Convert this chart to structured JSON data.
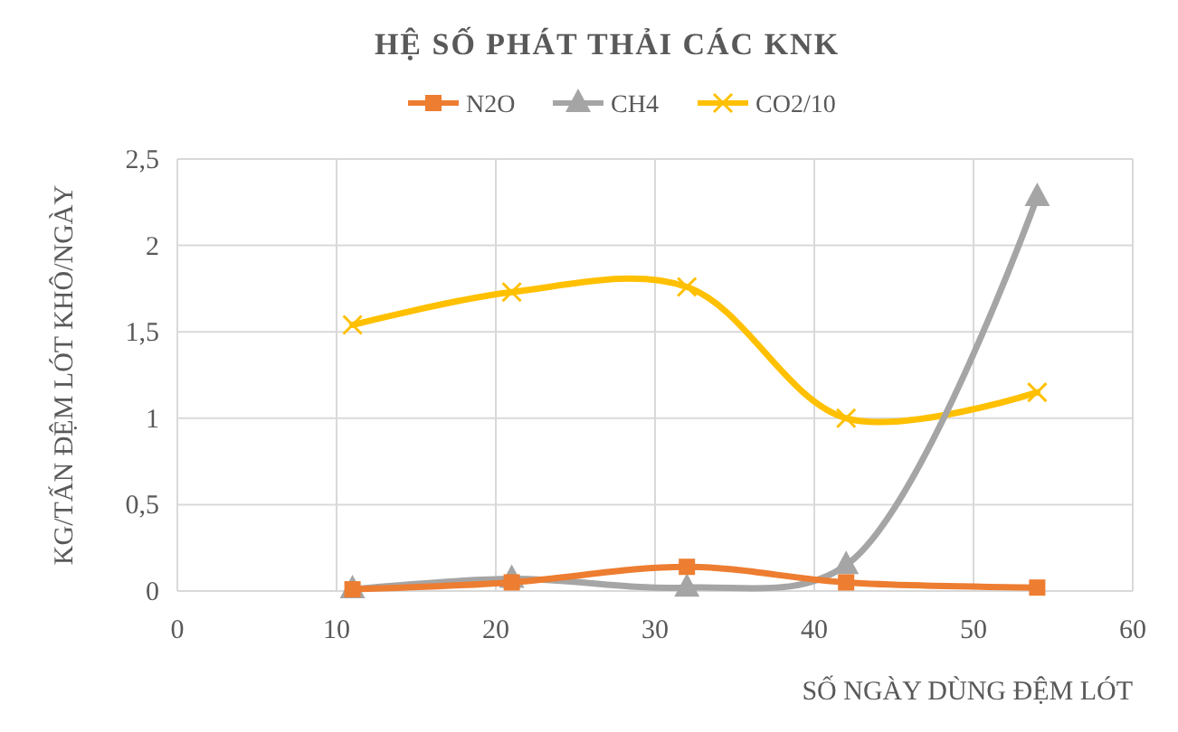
{
  "chart_data": {
    "type": "line",
    "title": "HỆ SỐ PHÁT THẢI CÁC KNK",
    "xlabel": "SỐ NGÀY DÙNG ĐỆM LÓT",
    "ylabel": "KG/TẤN ĐỆM LÓT KHÔ/NGÀY",
    "x": [
      11,
      21,
      32,
      42,
      54
    ],
    "series": [
      {
        "name": "N2O",
        "color": "#ed7d31",
        "marker": "square",
        "values": [
          0.01,
          0.05,
          0.14,
          0.05,
          0.02
        ]
      },
      {
        "name": "CH4",
        "color": "#a5a5a5",
        "marker": "triangle",
        "values": [
          0.01,
          0.07,
          0.02,
          0.15,
          2.28
        ]
      },
      {
        "name": "CO2/10",
        "color": "#ffc000",
        "marker": "cross",
        "values": [
          1.54,
          1.73,
          1.76,
          1.0,
          1.15
        ]
      }
    ],
    "xlim": [
      0,
      60
    ],
    "xticks": [
      0,
      10,
      20,
      30,
      40,
      50,
      60
    ],
    "ylim": [
      0,
      2.5
    ],
    "yticks": [
      0,
      {
        "value": 0.5,
        "label": "0,5"
      },
      1,
      {
        "value": 1.5,
        "label": "1,5"
      },
      2,
      {
        "value": 2.5,
        "label": "2,5"
      }
    ],
    "grid": true,
    "legend": "top",
    "line_style": "solid"
  }
}
